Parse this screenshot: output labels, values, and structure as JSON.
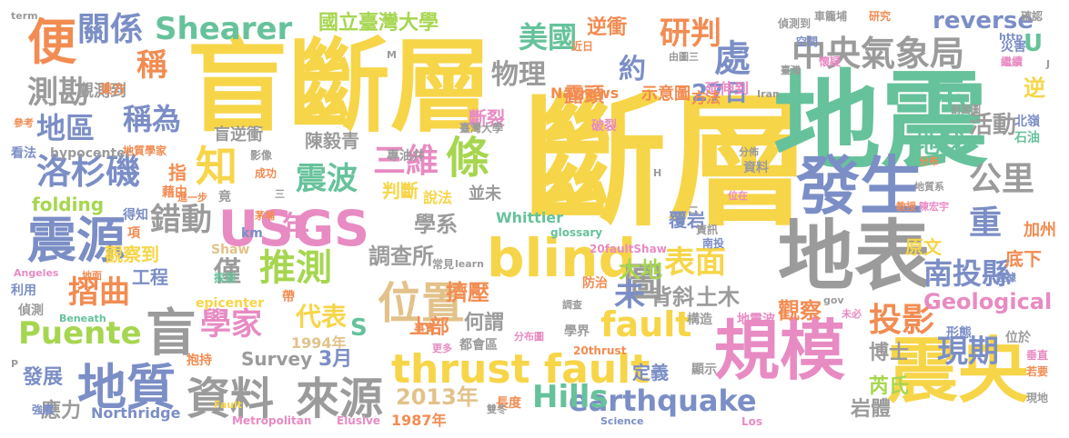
{
  "palette": {
    "yellow": "#f7d548",
    "green": "#66c29a",
    "blue": "#7b8ec6",
    "orange": "#f28c52",
    "gray": "#9b9b9b",
    "pink": "#e88bc3",
    "lime": "#a6d64f",
    "tan": "#e2c28a"
  },
  "words": [
    {
      "text": "盲斷層",
      "color": "yellow"
    },
    {
      "text": "斷層",
      "color": "yellow"
    },
    {
      "text": "地震",
      "color": "green"
    },
    {
      "text": "發生",
      "color": "blue"
    },
    {
      "text": "地表",
      "color": "gray"
    },
    {
      "text": "規模",
      "color": "pink"
    },
    {
      "text": "震央",
      "color": "yellow"
    },
    {
      "text": "thrust fault",
      "color": "yellow"
    },
    {
      "text": "blind",
      "color": "yellow"
    },
    {
      "text": "USGS",
      "color": "pink"
    },
    {
      "text": "震源",
      "color": "blue"
    },
    {
      "text": "地質",
      "color": "blue"
    },
    {
      "text": "資料",
      "color": "gray"
    },
    {
      "text": "來源",
      "color": "gray"
    },
    {
      "text": "位置",
      "color": "tan"
    },
    {
      "text": "盲",
      "color": "gray"
    },
    {
      "text": "Shearer",
      "color": "green"
    },
    {
      "text": "中央氣象局",
      "color": "gray"
    },
    {
      "text": "便",
      "color": "orange"
    },
    {
      "text": "關係",
      "color": "blue"
    },
    {
      "text": "稱",
      "color": "orange"
    },
    {
      "text": "測勘",
      "color": "gray"
    },
    {
      "text": "地區",
      "color": "blue"
    },
    {
      "text": "稱為",
      "color": "blue"
    },
    {
      "text": "洛杉磯",
      "color": "blue"
    },
    {
      "text": "知",
      "color": "yellow"
    },
    {
      "text": "錯動",
      "color": "gray"
    },
    {
      "text": "推測",
      "color": "lime"
    },
    {
      "text": "三維",
      "color": "pink"
    },
    {
      "text": "條",
      "color": "lime"
    },
    {
      "text": "震波",
      "color": "green"
    },
    {
      "text": "圖",
      "color": "gray"
    },
    {
      "text": "表面",
      "color": "yellow"
    },
    {
      "text": "Puente",
      "color": "lime"
    },
    {
      "text": "fault",
      "color": "yellow"
    },
    {
      "text": "earthquake",
      "color": "blue"
    },
    {
      "text": "Hills",
      "color": "green"
    },
    {
      "text": "投影",
      "color": "orange"
    },
    {
      "text": "現期",
      "color": "blue"
    },
    {
      "text": "南投縣",
      "color": "blue"
    },
    {
      "text": "公里",
      "color": "gray"
    },
    {
      "text": "重",
      "color": "blue"
    },
    {
      "text": "摺曲",
      "color": "orange"
    },
    {
      "text": "學家",
      "color": "pink"
    },
    {
      "text": "代表",
      "color": "yellow"
    },
    {
      "text": "研判",
      "color": "orange"
    },
    {
      "text": "美國",
      "color": "green"
    },
    {
      "text": "物理",
      "color": "gray"
    },
    {
      "text": "國立臺灣大學",
      "color": "lime"
    },
    {
      "text": "逆衝",
      "color": "orange"
    },
    {
      "text": "處",
      "color": "blue"
    },
    {
      "text": "示",
      "color": "green"
    },
    {
      "text": "約",
      "color": "blue"
    },
    {
      "text": "27日",
      "color": "blue"
    },
    {
      "text": "露頭",
      "color": "orange"
    },
    {
      "text": "示意圖",
      "color": "orange"
    },
    {
      "text": "活動",
      "color": "gray"
    },
    {
      "text": "地球",
      "color": "green"
    },
    {
      "text": "U",
      "color": "green"
    },
    {
      "text": "reverse",
      "color": "blue"
    },
    {
      "text": "逆",
      "color": "yellow"
    },
    {
      "text": "觀測到",
      "color": "gray"
    },
    {
      "text": "東方",
      "color": "orange"
    },
    {
      "text": "盲逆衝",
      "color": "gray"
    },
    {
      "text": "陳毅青",
      "color": "gray"
    },
    {
      "text": "斷裂",
      "color": "pink"
    },
    {
      "text": "Narrows",
      "color": "orange"
    },
    {
      "text": "延伸到",
      "color": "pink"
    },
    {
      "text": "方法",
      "color": "orange"
    },
    {
      "text": "判斷",
      "color": "yellow"
    },
    {
      "text": "並未",
      "color": "gray"
    },
    {
      "text": "說法",
      "color": "yellow"
    },
    {
      "text": "指",
      "color": "orange"
    },
    {
      "text": "folding",
      "color": "lime"
    },
    {
      "text": "觀察到",
      "color": "yellow"
    },
    {
      "text": "工程",
      "color": "blue"
    },
    {
      "text": "僅",
      "color": "gray"
    },
    {
      "text": "年",
      "color": "pink"
    },
    {
      "text": "學系",
      "color": "gray"
    },
    {
      "text": "覆岩",
      "color": "blue"
    },
    {
      "text": "調查所",
      "color": "gray"
    },
    {
      "text": "大地",
      "color": "lime"
    },
    {
      "text": "擠壓",
      "color": "orange"
    },
    {
      "text": "未",
      "color": "blue"
    },
    {
      "text": "背斜",
      "color": "gray"
    },
    {
      "text": "土木",
      "color": "gray"
    },
    {
      "text": "觀察",
      "color": "orange"
    },
    {
      "text": "Geological",
      "color": "pink"
    },
    {
      "text": "原文",
      "color": "yellow"
    },
    {
      "text": "底下",
      "color": "orange"
    },
    {
      "text": "加州",
      "color": "orange"
    },
    {
      "text": "上部",
      "color": "orange"
    },
    {
      "text": "何謂",
      "color": "gray"
    },
    {
      "text": "S",
      "color": "green"
    },
    {
      "text": "1994年",
      "color": "tan"
    },
    {
      "text": "Survey",
      "color": "gray"
    },
    {
      "text": "3月",
      "color": "blue"
    },
    {
      "text": "2013年",
      "color": "tan"
    },
    {
      "text": "發展",
      "color": "blue"
    },
    {
      "text": "應力",
      "color": "gray"
    },
    {
      "text": "Northridge",
      "color": "blue"
    },
    {
      "text": "1987年",
      "color": "orange"
    },
    {
      "text": "定義",
      "color": "blue"
    },
    {
      "text": "芮氏",
      "color": "lime"
    },
    {
      "text": "博士",
      "color": "gray"
    },
    {
      "text": "岩體",
      "color": "gray"
    },
    {
      "text": "構造",
      "color": "gray"
    },
    {
      "text": "地震波",
      "color": "pink"
    },
    {
      "text": "形態",
      "color": "blue"
    },
    {
      "text": "Whittier",
      "color": "green"
    },
    {
      "text": "防治",
      "color": "orange"
    },
    {
      "text": "epicenter",
      "color": "yellow"
    },
    {
      "text": "Shaw",
      "color": "tan"
    },
    {
      "text": "帶",
      "color": "orange"
    },
    {
      "text": "抱持",
      "color": "orange"
    },
    {
      "text": "顯示",
      "color": "gray"
    },
    {
      "text": "事實",
      "color": "orange"
    },
    {
      "text": "都會區",
      "color": "gray"
    },
    {
      "text": "學界",
      "color": "gray"
    },
    {
      "text": "長度",
      "color": "orange"
    },
    {
      "text": "得知",
      "color": "blue"
    },
    {
      "text": "項",
      "color": "orange"
    },
    {
      "text": "km",
      "color": "blue"
    },
    {
      "text": "利用",
      "color": "blue"
    },
    {
      "text": "偵測",
      "color": "gray"
    },
    {
      "text": "強震",
      "color": "blue"
    },
    {
      "text": "Beneath",
      "color": "green"
    },
    {
      "text": "Angeles",
      "color": "pink"
    },
    {
      "text": "地面",
      "color": "orange"
    },
    {
      "text": "看法",
      "color": "blue"
    },
    {
      "text": "hypocenter",
      "color": "gray"
    },
    {
      "text": "地質學家",
      "color": "orange"
    },
    {
      "text": "參考",
      "color": "orange"
    },
    {
      "text": "影像",
      "color": "gray"
    },
    {
      "text": "成功",
      "color": "orange"
    },
    {
      "text": "藉由",
      "color": "orange"
    },
    {
      "text": "竟",
      "color": "gray"
    },
    {
      "text": "專油井",
      "color": "gray"
    },
    {
      "text": "臺灣大學",
      "color": "gray"
    },
    {
      "text": "破裂",
      "color": "pink"
    },
    {
      "text": "分佈",
      "color": "gray"
    },
    {
      "text": "分布",
      "color": "orange"
    },
    {
      "text": "位在",
      "color": "pink"
    },
    {
      "text": "地質系",
      "color": "gray"
    },
    {
      "text": "教授",
      "color": "orange"
    },
    {
      "text": "陳宏宇",
      "color": "pink"
    },
    {
      "text": "資料",
      "color": "gray"
    },
    {
      "text": "資訊",
      "color": "gray"
    },
    {
      "text": "南投",
      "color": "blue"
    },
    {
      "text": "茅埔",
      "color": "orange"
    },
    {
      "text": "探測",
      "color": "green"
    },
    {
      "text": "常見",
      "color": "gray"
    },
    {
      "text": "glossary",
      "color": "green"
    },
    {
      "text": "20faultShaw",
      "color": "pink"
    },
    {
      "text": "learn",
      "color": "gray"
    },
    {
      "text": "調查",
      "color": "gray"
    },
    {
      "text": "分布圖",
      "color": "pink"
    },
    {
      "text": "20thrust",
      "color": "orange"
    },
    {
      "text": "更多",
      "color": "pink"
    },
    {
      "text": "雙冬",
      "color": "gray"
    },
    {
      "text": "Metropolitan",
      "color": "pink"
    },
    {
      "text": "Elusive",
      "color": "pink"
    },
    {
      "text": "Science",
      "color": "blue"
    },
    {
      "text": "Los",
      "color": "pink"
    },
    {
      "text": "Fault",
      "color": "yellow"
    },
    {
      "text": "未必",
      "color": "pink"
    },
    {
      "text": "證據",
      "color": "blue"
    },
    {
      "text": "gov",
      "color": "gray"
    },
    {
      "text": "位於",
      "color": "gray"
    },
    {
      "text": "垂直",
      "color": "pink"
    },
    {
      "text": "若要",
      "color": "orange"
    },
    {
      "text": "現地",
      "color": "gray"
    },
    {
      "text": "車籠埔",
      "color": "gray"
    },
    {
      "text": "研究",
      "color": "orange"
    },
    {
      "text": "偵測到",
      "color": "gray"
    },
    {
      "text": "確認",
      "color": "gray"
    },
    {
      "text": "http",
      "color": "blue"
    },
    {
      "text": "災害",
      "color": "blue"
    },
    {
      "text": "空間",
      "color": "blue"
    },
    {
      "text": "臺灣",
      "color": "gray"
    },
    {
      "text": "懷疑",
      "color": "pink"
    },
    {
      "text": "繼續",
      "color": "pink"
    },
    {
      "text": "剖面圖",
      "color": "gray"
    },
    {
      "text": "北嶺",
      "color": "blue"
    },
    {
      "text": "石油",
      "color": "green"
    },
    {
      "text": "近日",
      "color": "orange"
    },
    {
      "text": "由圖三",
      "color": "gray"
    },
    {
      "text": "term",
      "color": "gray"
    },
    {
      "text": "M",
      "color": "gray"
    },
    {
      "text": "H",
      "color": "gray"
    },
    {
      "text": "P",
      "color": "gray"
    },
    {
      "text": "J",
      "color": "gray"
    },
    {
      "text": "三",
      "color": "gray"
    },
    {
      "text": "二",
      "color": "gray"
    },
    {
      "text": "進一步",
      "color": "orange"
    },
    {
      "text": "Iran",
      "color": "gray"
    }
  ]
}
